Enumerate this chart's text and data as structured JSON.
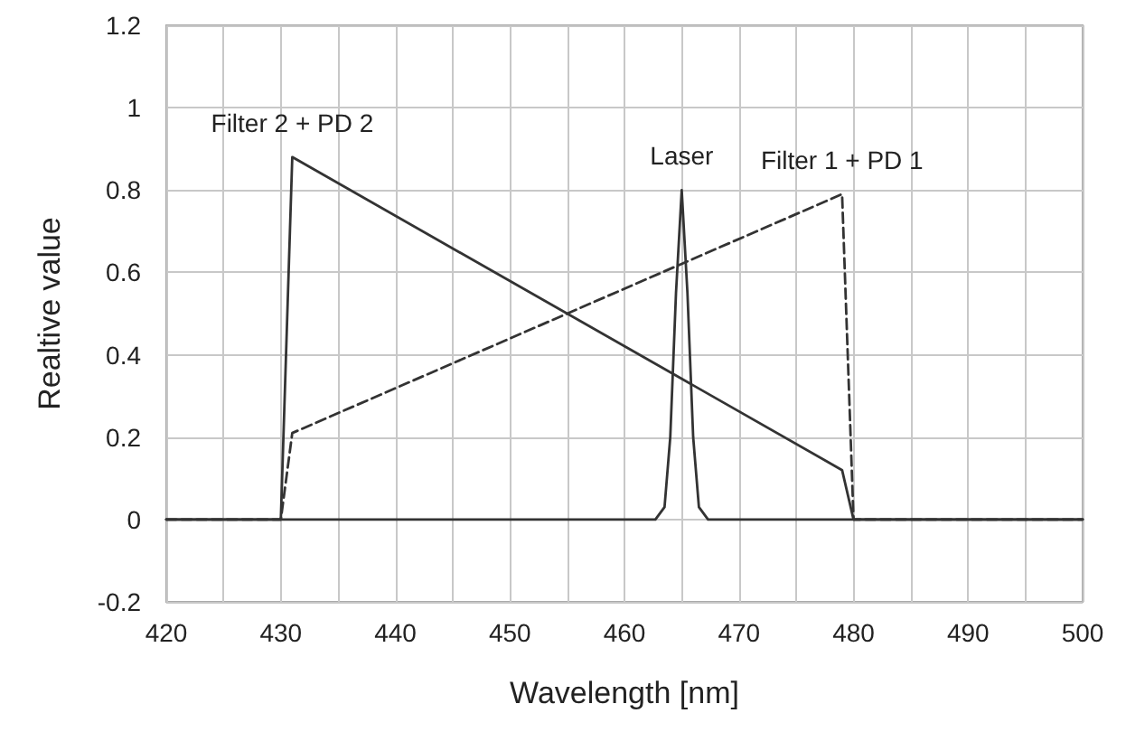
{
  "chart_data": {
    "type": "line",
    "xlabel": "Wavelength [nm]",
    "ylabel": "Realtive value",
    "xlim": [
      420,
      500
    ],
    "ylim": [
      -0.2,
      1.2
    ],
    "xticks": [
      420,
      {
        "value": 425,
        "label": null
      },
      430,
      {
        "value": 435,
        "label": null
      },
      440,
      {
        "value": 445,
        "label": null
      },
      450,
      {
        "value": 455,
        "label": null
      },
      460,
      {
        "value": 465,
        "label": null
      },
      470,
      {
        "value": 475,
        "label": null
      },
      480,
      {
        "value": 485,
        "label": null
      },
      490,
      {
        "value": 495,
        "label": null
      },
      500
    ],
    "yticks": [
      -0.2,
      0,
      0.2,
      0.4,
      0.6,
      0.8,
      1,
      1.2
    ],
    "grid": true,
    "legend": false,
    "marker": "none",
    "series": [
      {
        "name": "Filter 2 + PD 2",
        "color": "#333333",
        "line_style": "solid",
        "x": [
          420,
          430,
          431,
          479,
          480,
          500
        ],
        "values": [
          0,
          0,
          0.88,
          0.12,
          0,
          0
        ]
      },
      {
        "name": "Laser",
        "color": "#333333",
        "line_style": "solid",
        "x": [
          420,
          462.7,
          463.5,
          464,
          464.5,
          465,
          465.5,
          466,
          466.5,
          467.3,
          500
        ],
        "values": [
          0,
          0,
          0.03,
          0.2,
          0.55,
          0.8,
          0.55,
          0.2,
          0.03,
          0,
          0
        ]
      },
      {
        "name": "Filter 1 + PD 1",
        "color": "#333333",
        "line_style": "dashed",
        "x": [
          420,
          430,
          431,
          479,
          480,
          500
        ],
        "values": [
          0,
          0,
          0.21,
          0.79,
          0,
          0
        ]
      }
    ]
  }
}
